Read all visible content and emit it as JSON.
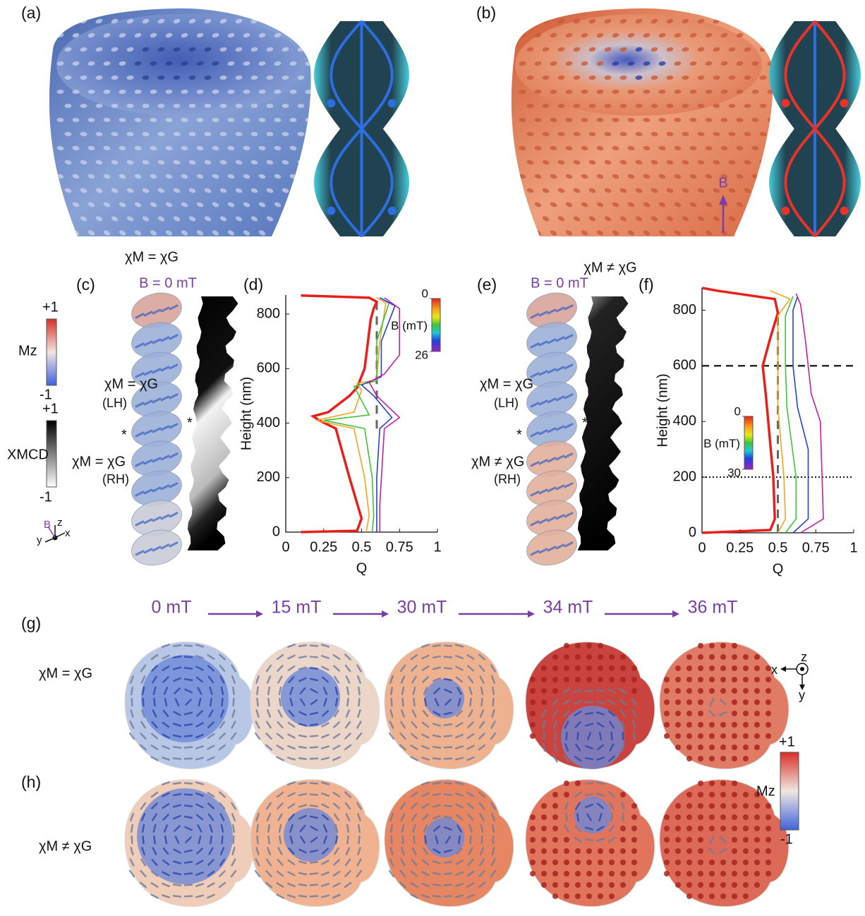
{
  "panel_a": {
    "label": "(a)",
    "caption": "χM = χG"
  },
  "panel_b": {
    "label": "(b)",
    "caption": "χM ≠ χG",
    "field": "B"
  },
  "panel_c": {
    "label": "(c)",
    "field": "B = 0 mT",
    "upper": "χM = χG",
    "upper_hand": "(LH)",
    "lower": "χM = χG",
    "lower_hand": "(RH)",
    "marker": "*",
    "mz_bar": {
      "max": "+1",
      "label": "Mz",
      "min": "-1"
    },
    "xmcd_bar": {
      "max": "+1",
      "label": "XMCD",
      "min": "-1"
    },
    "axes": {
      "field": "B",
      "z": "z",
      "y": "y",
      "x": "x"
    }
  },
  "panel_e": {
    "label": "(e)",
    "field": "B = 0 mT",
    "upper": "χM = χG",
    "upper_hand": "(LH)",
    "lower": "χM ≠ χG",
    "lower_hand": "(RH)",
    "marker": "*"
  },
  "chart_data": [
    {
      "type": "line",
      "label": "(d)",
      "xlabel": "Q",
      "ylabel": "Height (nm)",
      "xlim": [
        0,
        1
      ],
      "ylim": [
        0,
        870
      ],
      "xticks": [
        0,
        0.25,
        0.5,
        0.75,
        1
      ],
      "yticks": [
        0,
        200,
        400,
        600,
        800
      ],
      "colorbar": {
        "label": "B (mT)",
        "lim": [
          0,
          26
        ],
        "ticks": [
          0,
          26
        ]
      },
      "vline": {
        "value": 0.6,
        "from": 380,
        "to": 860
      },
      "series": [
        {
          "color": "#e8201c",
          "x": [
            0.1,
            0.47,
            0.5,
            0.42,
            0.33,
            0.22,
            0.18,
            0.28,
            0.42,
            0.47,
            0.52,
            0.56,
            0.58,
            0.6,
            0.55,
            0.1
          ],
          "y": [
            0,
            5,
            50,
            200,
            380,
            410,
            425,
            440,
            500,
            530,
            600,
            780,
            820,
            845,
            860,
            868
          ]
        },
        {
          "color": "#f7a21b",
          "x": [
            0.53,
            0.55,
            0.52,
            0.45,
            0.2,
            0.45,
            0.5,
            0.47,
            0.6,
            0.62,
            0.66,
            0.6
          ],
          "y": [
            0,
            60,
            200,
            380,
            410,
            440,
            520,
            545,
            560,
            700,
            840,
            860
          ]
        },
        {
          "color": "#3ec43a",
          "x": [
            0.57,
            0.58,
            0.57,
            0.52,
            0.25,
            0.55,
            0.45,
            0.6,
            0.6,
            0.68,
            0.62
          ],
          "y": [
            0,
            60,
            200,
            380,
            410,
            430,
            535,
            555,
            700,
            840,
            860
          ]
        },
        {
          "color": "#2040e0",
          "x": [
            0.6,
            0.6,
            0.6,
            0.62,
            0.7,
            0.58,
            0.5,
            0.63,
            0.63,
            0.72,
            0.62
          ],
          "y": [
            0,
            60,
            200,
            380,
            420,
            500,
            540,
            570,
            700,
            830,
            860
          ]
        },
        {
          "color": "#c81ea0",
          "x": [
            0.62,
            0.62,
            0.65,
            0.75,
            0.6,
            0.55,
            0.65,
            0.75,
            0.75,
            0.65
          ],
          "y": [
            0,
            100,
            380,
            420,
            500,
            550,
            580,
            650,
            820,
            860
          ]
        }
      ]
    },
    {
      "type": "line",
      "label": "(f)",
      "xlabel": "Q",
      "ylabel": "Height (nm)",
      "xlim": [
        0,
        1
      ],
      "ylim": [
        0,
        880
      ],
      "xticks": [
        0,
        0.25,
        0.5,
        0.75,
        1
      ],
      "yticks": [
        0,
        200,
        400,
        600,
        800
      ],
      "colorbar": {
        "label": "B (mT)",
        "lim": [
          0,
          30
        ],
        "ticks": [
          0,
          30
        ]
      },
      "vline": {
        "value": 0.5,
        "from": 0,
        "to": 800
      },
      "hlines": [
        {
          "value": 600,
          "style": "dashed"
        },
        {
          "value": 200,
          "style": "dotted"
        }
      ],
      "series": [
        {
          "color": "#e8201c",
          "x": [
            0,
            0.45,
            0.48,
            0.47,
            0.42,
            0.4,
            0.45,
            0.5,
            0.48,
            0.1,
            0
          ],
          "y": [
            0,
            10,
            50,
            200,
            500,
            600,
            700,
            790,
            840,
            870,
            880
          ]
        },
        {
          "color": "#f7a21b",
          "x": [
            0.5,
            0.55,
            0.54,
            0.5,
            0.5,
            0.5,
            0.58,
            0.45
          ],
          "y": [
            0,
            50,
            200,
            450,
            600,
            780,
            840,
            870
          ]
        },
        {
          "color": "#3ec43a",
          "x": [
            0.55,
            0.62,
            0.62,
            0.56,
            0.55,
            0.55,
            0.6
          ],
          "y": [
            0,
            50,
            200,
            450,
            600,
            780,
            850
          ]
        },
        {
          "color": "#2040e0",
          "x": [
            0.6,
            0.7,
            0.7,
            0.63,
            0.6,
            0.6,
            0.63
          ],
          "y": [
            0,
            50,
            300,
            450,
            600,
            800,
            850
          ]
        },
        {
          "color": "#c81ea0",
          "x": [
            0.65,
            0.8,
            0.78,
            0.72,
            0.7,
            0.68,
            0.65,
            0.62
          ],
          "y": [
            0,
            50,
            400,
            500,
            600,
            700,
            820,
            860
          ]
        }
      ]
    }
  ],
  "fields": [
    "0 mT",
    "15 mT",
    "30 mT",
    "34 mT",
    "36 mT"
  ],
  "panel_g": {
    "label": "(g)",
    "row": "χM = χG"
  },
  "panel_h": {
    "label": "(h)",
    "row": "χM ≠ χG"
  },
  "mz_bar": {
    "max": "+1",
    "label": "Mz",
    "min": "-1"
  },
  "axes": {
    "z": "z",
    "x": "x",
    "y": "y"
  }
}
